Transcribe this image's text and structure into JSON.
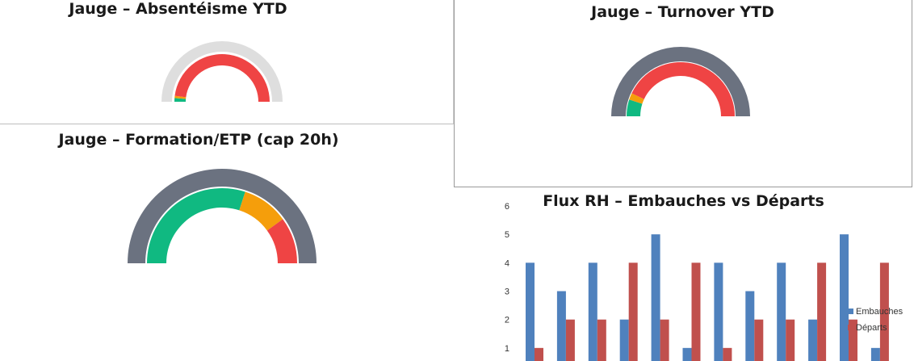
{
  "colors": {
    "track_light": "#dedede",
    "track_dark": "#6b7280",
    "green": "#10b981",
    "orange": "#f59e0b",
    "red": "#ef4444",
    "series_blue": "#4f81bd",
    "series_red": "#c0504d"
  },
  "chart_data": [
    {
      "type": "gauge",
      "title": "Jauge – Absentéisme YTD",
      "track": "light",
      "bands": [
        {
          "color": "green",
          "fraction": 0.025
        },
        {
          "color": "orange",
          "fraction": 0.015
        },
        {
          "color": "red",
          "fraction": 0.96
        }
      ]
    },
    {
      "type": "gauge",
      "title": "Jauge – Turnover YTD",
      "track": "dark",
      "bands": [
        {
          "color": "green",
          "fraction": 0.1
        },
        {
          "color": "orange",
          "fraction": 0.04
        },
        {
          "color": "red",
          "fraction": 0.86
        }
      ]
    },
    {
      "type": "gauge",
      "title": "Jauge – Formation/ETP (cap 20h)",
      "track": "dark",
      "bands": [
        {
          "color": "green",
          "fraction": 0.6
        },
        {
          "color": "orange",
          "fraction": 0.2
        },
        {
          "color": "red",
          "fraction": 0.2
        }
      ]
    },
    {
      "type": "bar",
      "title": "Flux RH – Embauches vs Départs",
      "ylim": [
        0,
        6
      ],
      "yticks": [
        "1",
        "2",
        "3",
        "4",
        "5",
        "6"
      ],
      "series": [
        {
          "name": "Embauches",
          "color": "series_blue",
          "values": [
            4,
            3,
            4,
            2,
            5,
            1,
            4,
            3,
            4,
            2,
            5,
            1
          ]
        },
        {
          "name": "Départs",
          "color": "series_red",
          "values": [
            1,
            2,
            2,
            4,
            2,
            4,
            1,
            2,
            2,
            4,
            2,
            4
          ]
        }
      ],
      "legend": "right"
    }
  ]
}
